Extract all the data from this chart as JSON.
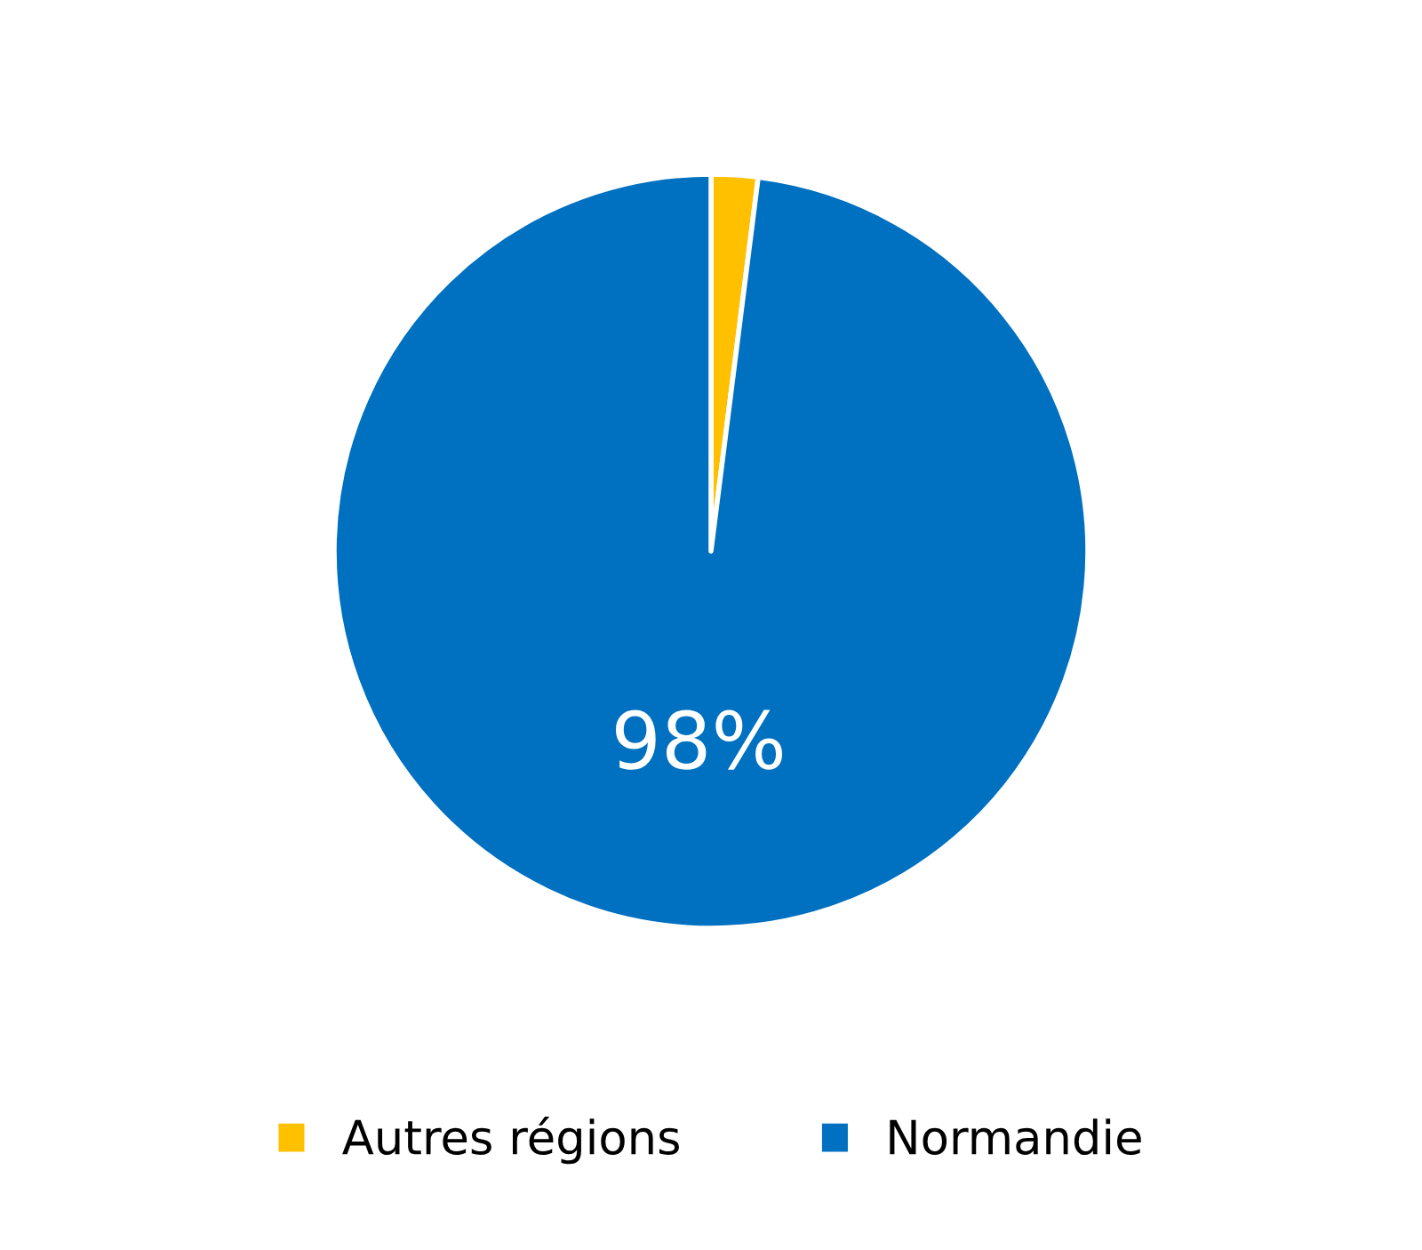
{
  "chart_data": {
    "type": "pie",
    "categories": [
      "Autres régions",
      "Normandie"
    ],
    "values": [
      2,
      98
    ],
    "colors": [
      "#ffc000",
      "#0070c0"
    ],
    "value_labels": [
      null,
      "98%"
    ],
    "legend": "bottom"
  }
}
